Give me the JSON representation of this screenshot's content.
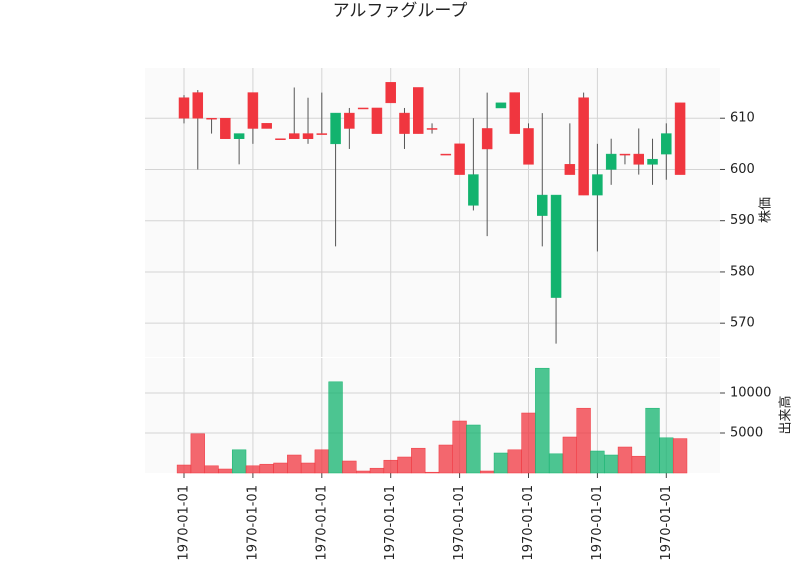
{
  "chart_data": {
    "type": "candlestick",
    "title": "アルファグループ",
    "ylabel": "株価",
    "volume_label": "出来高",
    "up_color": "#f0363f",
    "down_color": "#12b36e",
    "grid": true,
    "open": [
      610,
      610,
      610,
      606,
      607,
      608,
      608,
      606,
      606,
      606,
      607,
      611,
      608,
      612,
      607,
      613,
      607,
      607,
      608,
      603,
      599,
      599,
      604,
      613,
      607,
      601,
      595,
      595,
      599,
      595,
      599,
      603,
      603,
      601,
      602,
      607,
      599
    ],
    "high": [
      614.5,
      615.5,
      610,
      610,
      607,
      615,
      609,
      606,
      616,
      614,
      615,
      611,
      612,
      612,
      612,
      617,
      612,
      616,
      609,
      603,
      605,
      610,
      615,
      613,
      615,
      609,
      611,
      595,
      609,
      615,
      605,
      606,
      603,
      608,
      606,
      609,
      613
    ],
    "low": [
      609,
      600,
      607,
      606,
      601,
      605,
      608,
      606,
      606,
      605,
      607,
      585,
      604,
      612,
      607,
      613,
      604,
      607,
      607,
      603,
      599,
      592,
      587,
      612,
      607,
      601,
      585,
      566,
      599,
      595,
      584,
      597,
      601,
      599,
      597,
      598,
      599
    ],
    "close": [
      614,
      615,
      610,
      610,
      606,
      615,
      609,
      606,
      607,
      607,
      607,
      605,
      611,
      612,
      612,
      617,
      611,
      616,
      608,
      603,
      605,
      593,
      608,
      612,
      615,
      608,
      591,
      575,
      601,
      614,
      595,
      600,
      603,
      603,
      601,
      603,
      613
    ],
    "volume": [
      1000,
      4900,
      900,
      500,
      2900,
      900,
      1100,
      1250,
      2250,
      1250,
      2900,
      11400,
      1500,
      250,
      600,
      1600,
      2000,
      3100,
      100,
      3500,
      6500,
      6000,
      250,
      2500,
      2900,
      7500,
      13100,
      2400,
      4500,
      8100,
      2750,
      2250,
      3250,
      2100,
      8100,
      4400,
      4300
    ],
    "ylim": [
      563.4,
      619.8
    ],
    "yticks": [
      570,
      580,
      590,
      600,
      610
    ],
    "volume_ylim": [
      0,
      14375
    ],
    "volume_yticks": [
      5000,
      10000
    ],
    "xticks": [
      {
        "value": 0,
        "label": "1970-01-01"
      },
      {
        "value": 5,
        "label": "1970-01-01"
      },
      {
        "value": 10,
        "label": "1970-01-01"
      },
      {
        "value": 15,
        "label": "1970-01-01"
      },
      {
        "value": 20,
        "label": "1970-01-01"
      },
      {
        "value": 25,
        "label": "1970-01-01"
      },
      {
        "value": 30,
        "label": "1970-01-01"
      },
      {
        "value": 35,
        "label": "1970-01-01"
      }
    ]
  }
}
